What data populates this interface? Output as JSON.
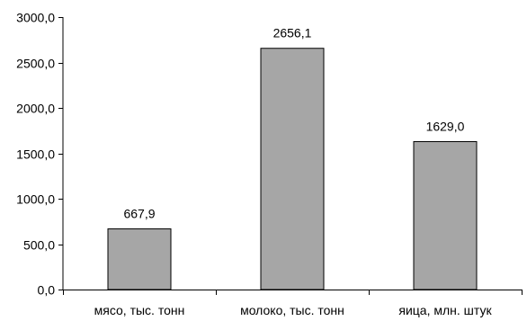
{
  "chart_data": {
    "type": "bar",
    "title": "",
    "xlabel": "",
    "ylabel": "",
    "categories": [
      "мясо, тыс. тонн",
      "молоко, тыс. тонн",
      "яица, млн. штук"
    ],
    "values": [
      667.9,
      2656.1,
      1629.0
    ],
    "data_labels": [
      "667,9",
      "2656,1",
      "1629,0"
    ],
    "ylim": [
      0,
      3000
    ],
    "yticks": [
      0,
      500,
      1000,
      1500,
      2000,
      2500,
      3000
    ],
    "ytick_labels": [
      "0,0",
      "500,0",
      "1000,0",
      "1500,0",
      "2000,0",
      "2500,0",
      "3000,0"
    ],
    "grid": false,
    "legend": "none",
    "colors": {
      "bar_fill": "#a6a6a6",
      "bar_stroke": "#000000",
      "axis": "#000000",
      "text": "#000000"
    }
  }
}
